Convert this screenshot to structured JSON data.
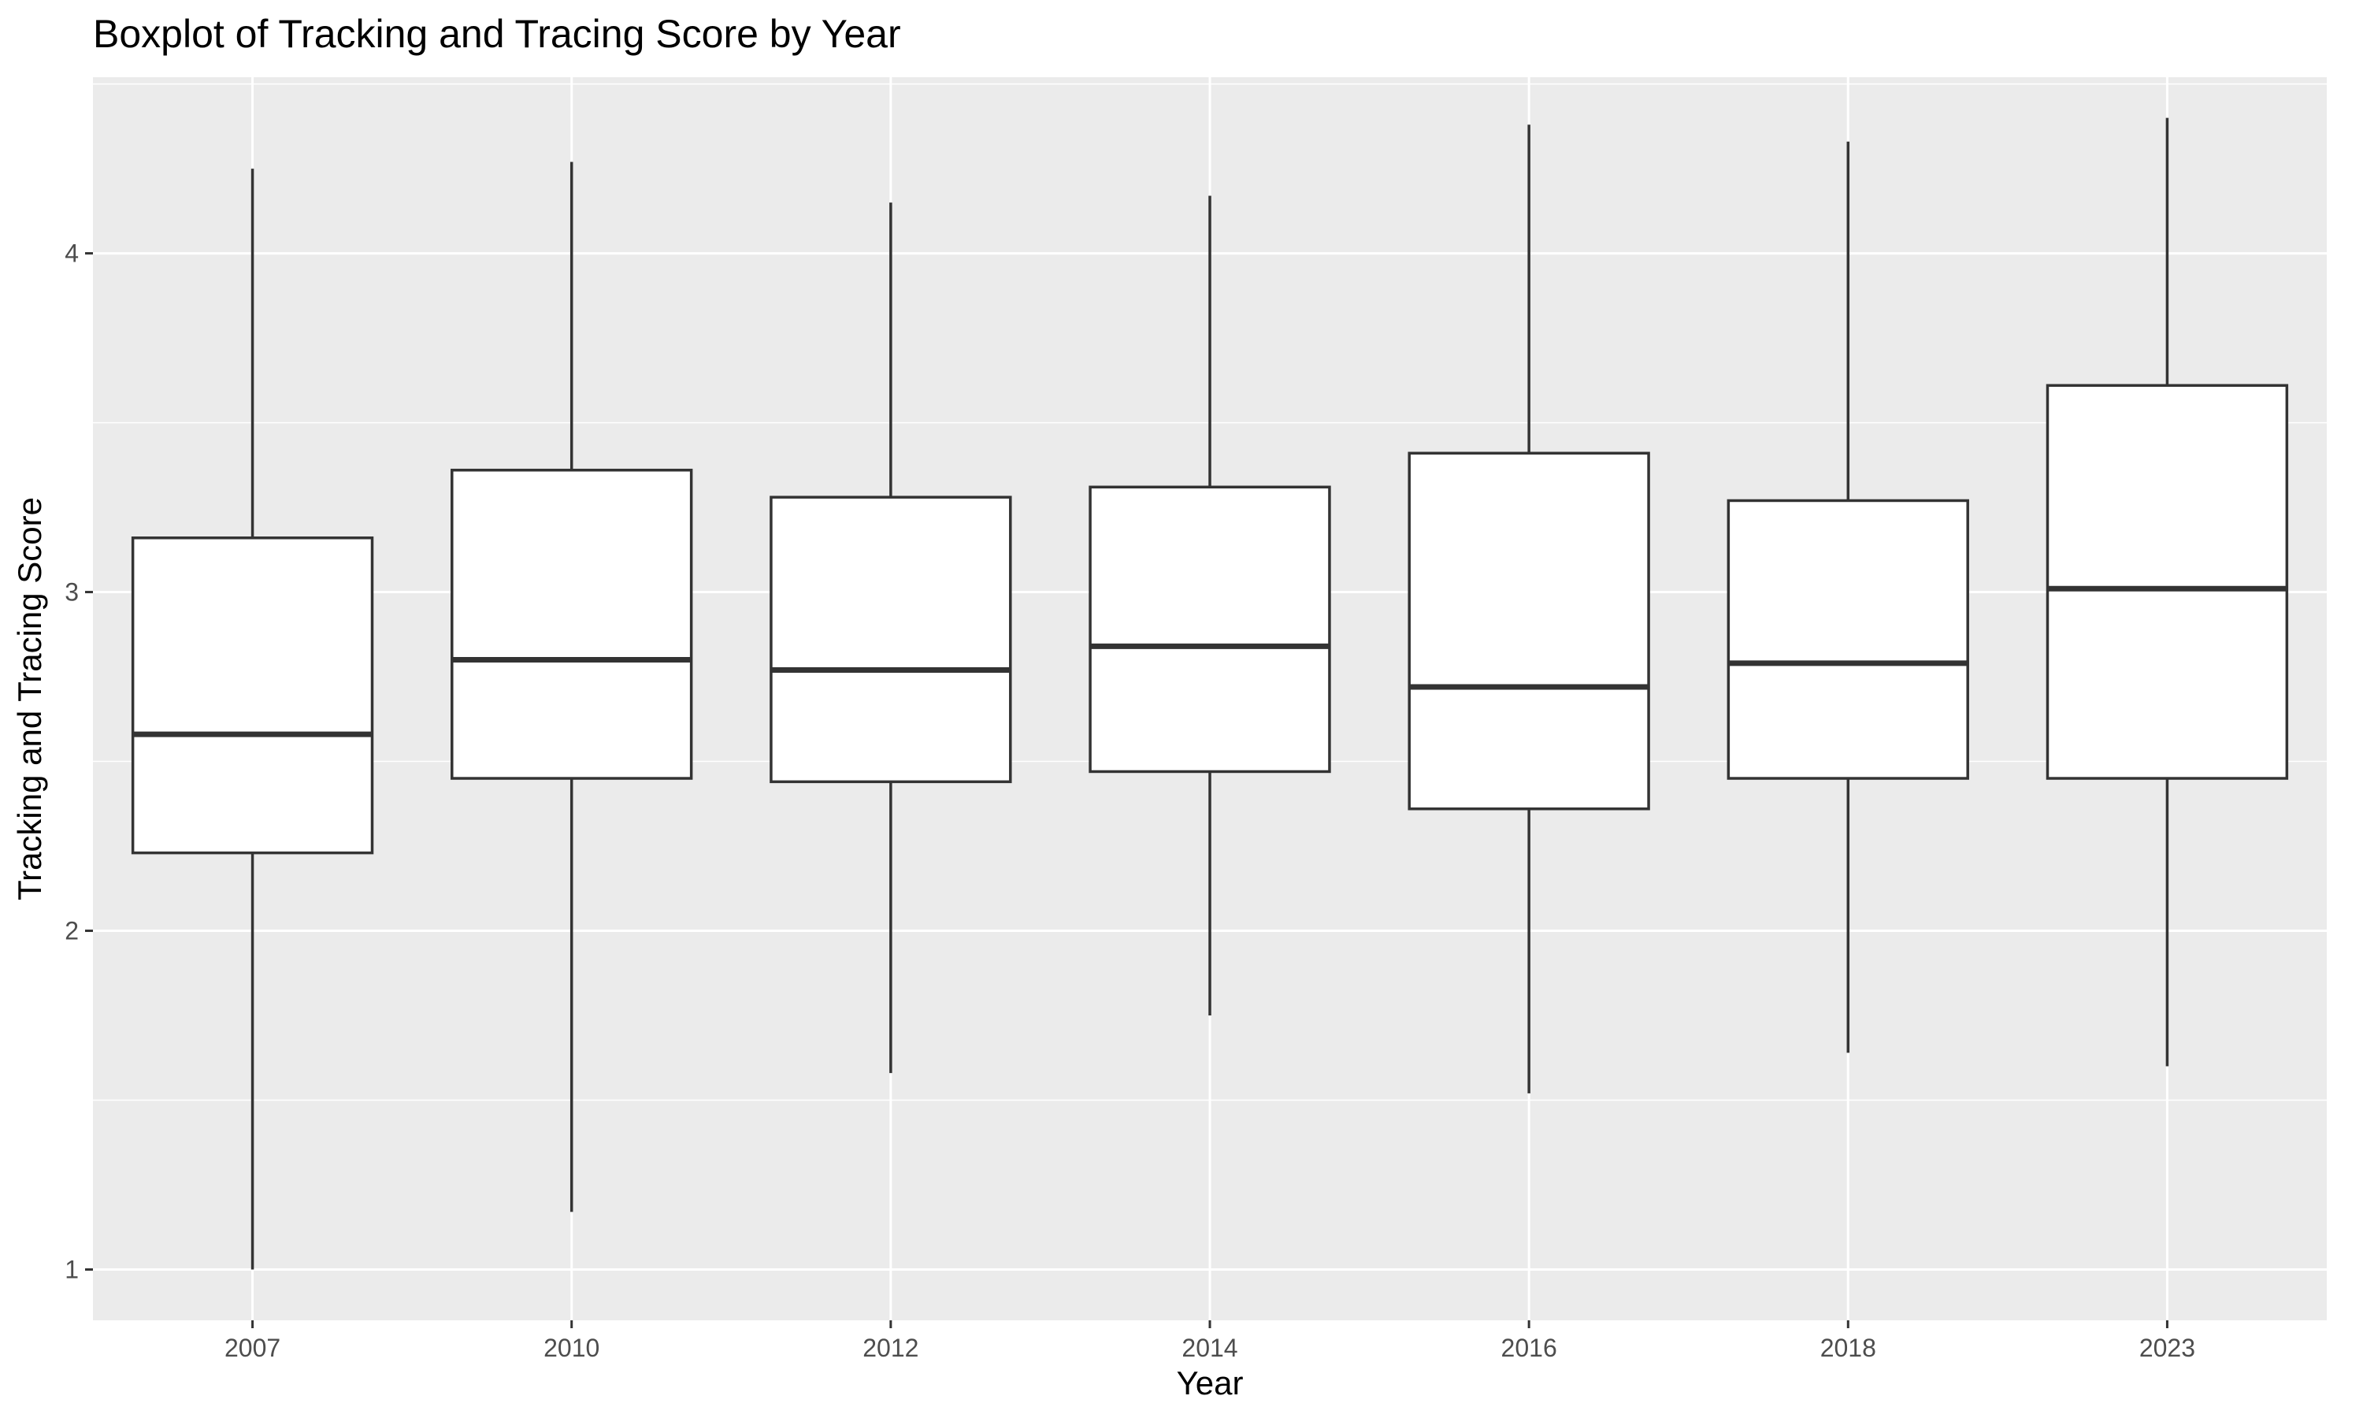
{
  "chart_data": {
    "type": "boxplot",
    "title": "Boxplot of Tracking and Tracing Score by Year",
    "xlabel": "Year",
    "ylabel": "Tracking and Tracing Score",
    "categories": [
      "2007",
      "2010",
      "2012",
      "2014",
      "2016",
      "2018",
      "2023"
    ],
    "boxes": [
      {
        "category": "2007",
        "min": 1.0,
        "q1": 2.23,
        "median": 2.58,
        "q3": 3.16,
        "max": 4.25
      },
      {
        "category": "2010",
        "min": 1.17,
        "q1": 2.45,
        "median": 2.8,
        "q3": 3.36,
        "max": 4.27
      },
      {
        "category": "2012",
        "min": 1.58,
        "q1": 2.44,
        "median": 2.77,
        "q3": 3.28,
        "max": 4.15
      },
      {
        "category": "2014",
        "min": 1.75,
        "q1": 2.47,
        "median": 2.84,
        "q3": 3.31,
        "max": 4.17
      },
      {
        "category": "2016",
        "min": 1.52,
        "q1": 2.36,
        "median": 2.72,
        "q3": 3.41,
        "max": 4.38
      },
      {
        "category": "2018",
        "min": 1.64,
        "q1": 2.45,
        "median": 2.79,
        "q3": 3.27,
        "max": 4.33
      },
      {
        "category": "2023",
        "min": 1.6,
        "q1": 2.45,
        "median": 3.01,
        "q3": 3.61,
        "max": 4.4
      }
    ],
    "yticks": [
      1,
      2,
      3,
      4
    ],
    "ylim": [
      0.85,
      4.52
    ],
    "grid": true,
    "colors": {
      "panel": "#ebebeb",
      "grid_major": "#ffffff",
      "box_fill": "#ffffff",
      "box_stroke": "#333333"
    }
  }
}
